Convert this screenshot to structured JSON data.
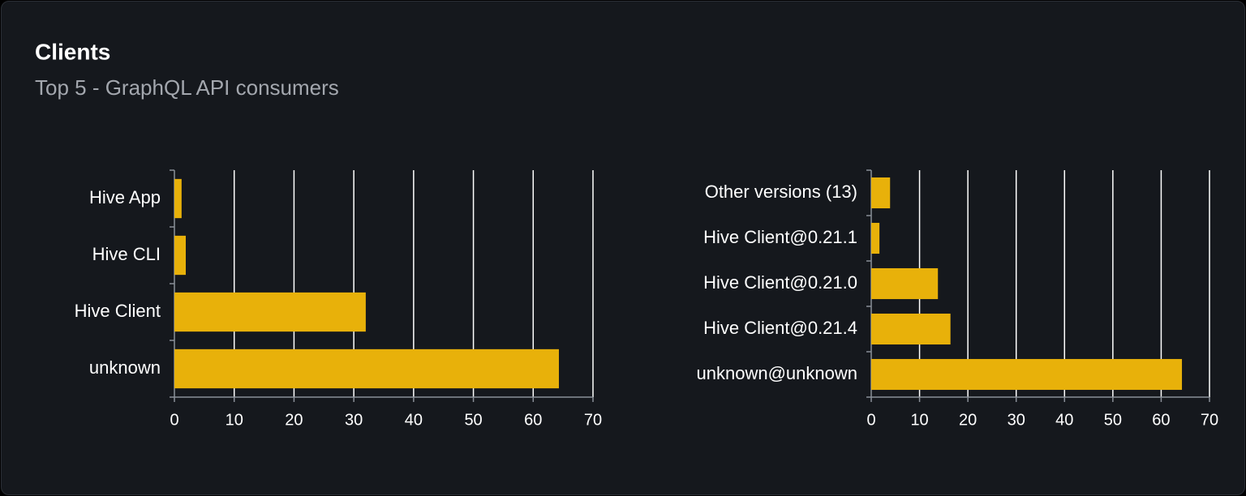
{
  "card": {
    "title": "Clients",
    "subtitle": "Top 5 - GraphQL API consumers"
  },
  "chart_data": [
    {
      "type": "bar",
      "orientation": "horizontal",
      "categories": [
        "Hive App",
        "Hive CLI",
        "Hive Client",
        "unknown"
      ],
      "values": [
        1.2,
        1.9,
        32.0,
        64.3
      ],
      "color": "#e8b10a",
      "xlim": [
        0,
        70
      ],
      "xticks": [
        0,
        10,
        20,
        30,
        40,
        50,
        60,
        70
      ],
      "grid": true
    },
    {
      "type": "bar",
      "orientation": "horizontal",
      "categories": [
        "Other versions (13)",
        "Hive Client@0.21.1",
        "Hive Client@0.21.0",
        "Hive Client@0.21.4",
        "unknown@unknown"
      ],
      "values": [
        3.9,
        1.7,
        13.8,
        16.4,
        64.3
      ],
      "color": "#e8b10a",
      "xlim": [
        0,
        70
      ],
      "xticks": [
        0,
        10,
        20,
        30,
        40,
        50,
        60,
        70
      ],
      "grid": true
    }
  ]
}
